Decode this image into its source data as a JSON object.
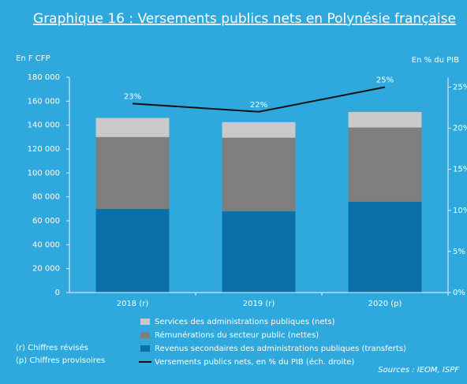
{
  "chart_data": {
    "type": "bar_line",
    "title": "Graphique 16 : Versements publics nets en Polynésie française",
    "y_label": "En F CFP",
    "y2_label": "En % du PIB",
    "categories": [
      "2018 (r)",
      "2019 (r)",
      "2020 (p)"
    ],
    "series": [
      {
        "name": "Revenus secondaires des administrations publiques (transferts)",
        "type": "bar",
        "color": "#0b70a6",
        "values": [
          70000,
          68000,
          76000
        ]
      },
      {
        "name": "Rémunérations du secteur public (nettes)",
        "type": "bar",
        "color": "#7f7f7f",
        "values": [
          60000,
          61500,
          62000
        ]
      },
      {
        "name": "Services des administrations publiques (nets)",
        "type": "bar",
        "color": "#c9c9c9",
        "values": [
          16000,
          13000,
          13000
        ]
      },
      {
        "name": "Versements publics nets, en % du PIB (éch. droite)",
        "type": "line",
        "axis": "y2",
        "color": "#111111",
        "values": [
          23,
          22,
          25
        ],
        "value_labels": [
          "23%",
          "22%",
          "25%"
        ]
      }
    ],
    "ylim": [
      0,
      180000
    ],
    "yticks": [
      0,
      {
        "value": 20000,
        "label": "20 000"
      },
      {
        "value": 40000,
        "label": "40 000"
      },
      {
        "value": 60000,
        "label": "60 000"
      },
      {
        "value": 80000,
        "label": "80 000"
      },
      {
        "value": 100000,
        "label": "100 000"
      },
      {
        "value": 120000,
        "label": "120 000"
      },
      {
        "value": 140000,
        "label": "140 000"
      },
      {
        "value": 160000,
        "label": "160 000"
      },
      {
        "value": 180000,
        "label": "180 000"
      }
    ],
    "y2lim": [
      0,
      26.2
    ],
    "y2ticks": [
      {
        "value": 0,
        "label": "0%"
      },
      {
        "value": 5,
        "label": "5%"
      },
      {
        "value": 10,
        "label": "10%"
      },
      {
        "value": 15,
        "label": "15%"
      },
      {
        "value": 20,
        "label": "20%"
      },
      {
        "value": 25,
        "label": "25%"
      }
    ],
    "notes": [
      "(r) Chiffres révisés",
      "(p) Chiffres provisoires"
    ],
    "source": "Sources : IEOM, ISPF"
  }
}
